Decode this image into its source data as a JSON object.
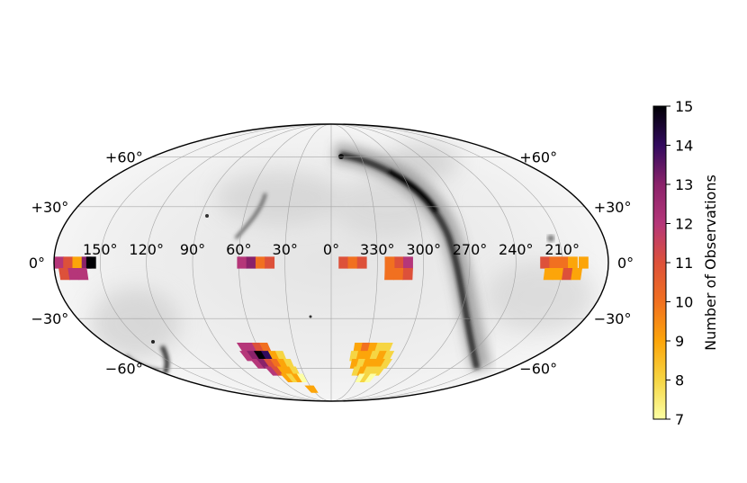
{
  "chart_data": {
    "type": "heatmap",
    "projection": "mollweide",
    "background": "grayscale all-sky dust emission map",
    "lon_ticks": [
      "150°",
      "120°",
      "90°",
      "60°",
      "30°",
      "0°",
      "330°",
      "300°",
      "270°",
      "240°",
      "210°"
    ],
    "lon_tick_values": [
      150,
      120,
      90,
      60,
      30,
      0,
      330,
      300,
      270,
      240,
      210
    ],
    "lat_ticks_left": [
      "+60°",
      "+30°",
      "0°",
      "−30°",
      "−60°"
    ],
    "lat_ticks_right": [
      "+60°",
      "+30°",
      "0°",
      "−30°",
      "−60°"
    ],
    "lat_tick_values": [
      60,
      30,
      0,
      -30,
      -60
    ],
    "grid": true,
    "colormap": "inferno_r",
    "colorbar": {
      "label": "Number of Observations",
      "min": 7,
      "max": 15,
      "ticks": [
        "7",
        "8",
        "9",
        "10",
        "11",
        "12",
        "13",
        "14",
        "15"
      ],
      "tick_values": [
        7,
        8,
        9,
        10,
        11,
        12,
        13,
        14,
        15
      ],
      "placement": "right"
    },
    "fields": [
      {
        "lon": [
          154,
          180
        ],
        "lat": [
          -10,
          5
        ],
        "value": 12
      },
      {
        "lon": [
          -180,
          -158
        ],
        "lat": [
          -10,
          5
        ],
        "value": 11
      },
      {
        "lon": [
          190,
          225
        ],
        "lat": [
          -10,
          5
        ],
        "value": 10
      },
      {
        "lon": [
          -3,
          50
        ],
        "lat": [
          -10,
          5
        ],
        "value": 10
      },
      {
        "lon": [
          50,
          64
        ],
        "lat": [
          -10,
          5
        ],
        "value": 12
      },
      {
        "lon": [
          307,
          357
        ],
        "lat": [
          -10,
          5
        ],
        "value": 10
      },
      {
        "lon": [
          45,
          75
        ],
        "lat": [
          -62,
          -45
        ],
        "value": 12
      },
      {
        "lon": [
          30,
          50
        ],
        "lat": [
          -66,
          -50
        ],
        "value": 9
      },
      {
        "lon": [
          300,
          340
        ],
        "lat": [
          -65,
          -45
        ],
        "value": 9
      },
      {
        "lon": [
          295,
          315
        ],
        "lat": [
          -65,
          -55
        ],
        "value": 8
      },
      {
        "lon": [
          35,
          25
        ],
        "lat": [
          -78,
          -72
        ],
        "value": 9
      }
    ],
    "cells": [
      {
        "lon": 177,
        "lat": 0,
        "value": 12
      },
      {
        "lon": 171,
        "lat": 0,
        "value": 11
      },
      {
        "lon": 165,
        "lat": 0,
        "value": 9
      },
      {
        "lon": 159,
        "lat": 0,
        "value": 13
      },
      {
        "lon": 156,
        "lat": 0,
        "value": 15
      },
      {
        "lon": 174,
        "lat": -6,
        "value": 11
      },
      {
        "lon": 168,
        "lat": -6,
        "value": 12
      },
      {
        "lon": 162,
        "lat": -6,
        "value": 12
      },
      {
        "lon": 58,
        "lat": 0,
        "value": 12
      },
      {
        "lon": 52,
        "lat": 0,
        "value": 13
      },
      {
        "lon": 46,
        "lat": 0,
        "value": 10
      },
      {
        "lon": 40,
        "lat": 0,
        "value": 11
      },
      {
        "lon": 352,
        "lat": 0,
        "value": 11
      },
      {
        "lon": 346,
        "lat": 0,
        "value": 10
      },
      {
        "lon": 340,
        "lat": 0,
        "value": 11
      },
      {
        "lon": 316,
        "lat": 0,
        "value": 11
      },
      {
        "lon": 310,
        "lat": 0,
        "value": 12
      },
      {
        "lon": 322,
        "lat": 0,
        "value": 10
      },
      {
        "lon": 322,
        "lat": -6,
        "value": 10
      },
      {
        "lon": 316,
        "lat": -6,
        "value": 10
      },
      {
        "lon": 310,
        "lat": -6,
        "value": 11
      },
      {
        "lon": 221,
        "lat": 0,
        "value": 11
      },
      {
        "lon": 215,
        "lat": 0,
        "value": 10
      },
      {
        "lon": 209,
        "lat": 0,
        "value": 10
      },
      {
        "lon": 203,
        "lat": 0,
        "value": 9
      },
      {
        "lon": 196,
        "lat": 0,
        "value": 9
      },
      {
        "lon": 218,
        "lat": -6,
        "value": 9
      },
      {
        "lon": 212,
        "lat": -6,
        "value": 9
      },
      {
        "lon": 206,
        "lat": -6,
        "value": 11
      },
      {
        "lon": 200,
        "lat": -6,
        "value": 9
      },
      {
        "lon": 72,
        "lat": -47,
        "value": 12
      },
      {
        "lon": 66,
        "lat": -47,
        "value": 12
      },
      {
        "lon": 60,
        "lat": -47,
        "value": 11
      },
      {
        "lon": 54,
        "lat": -47,
        "value": 10
      },
      {
        "lon": 74,
        "lat": -52,
        "value": 12
      },
      {
        "lon": 68,
        "lat": -52,
        "value": 13
      },
      {
        "lon": 62,
        "lat": -52,
        "value": 15
      },
      {
        "lon": 56,
        "lat": -52,
        "value": 14
      },
      {
        "lon": 50,
        "lat": -52,
        "value": 9
      },
      {
        "lon": 44,
        "lat": -52,
        "value": 8
      },
      {
        "lon": 70,
        "lat": -57,
        "value": 12
      },
      {
        "lon": 64,
        "lat": -57,
        "value": 13
      },
      {
        "lon": 58,
        "lat": -57,
        "value": 11
      },
      {
        "lon": 52,
        "lat": -57,
        "value": 10
      },
      {
        "lon": 46,
        "lat": -57,
        "value": 9
      },
      {
        "lon": 40,
        "lat": -57,
        "value": 8
      },
      {
        "lon": 62,
        "lat": -62,
        "value": 12
      },
      {
        "lon": 56,
        "lat": -62,
        "value": 11
      },
      {
        "lon": 50,
        "lat": -62,
        "value": 9
      },
      {
        "lon": 44,
        "lat": -62,
        "value": 9
      },
      {
        "lon": 38,
        "lat": -62,
        "value": 8
      },
      {
        "lon": 52,
        "lat": -67,
        "value": 9
      },
      {
        "lon": 46,
        "lat": -67,
        "value": 8
      },
      {
        "lon": 40,
        "lat": -67,
        "value": 9
      },
      {
        "lon": 34,
        "lat": -67,
        "value": 7
      },
      {
        "lon": 28,
        "lat": -76,
        "value": 9
      },
      {
        "lon": 34,
        "lat": -76,
        "value": 9
      },
      {
        "lon": 338,
        "lat": -47,
        "value": 9
      },
      {
        "lon": 332,
        "lat": -47,
        "value": 10
      },
      {
        "lon": 326,
        "lat": -47,
        "value": 9
      },
      {
        "lon": 320,
        "lat": -47,
        "value": 8
      },
      {
        "lon": 314,
        "lat": -47,
        "value": 8
      },
      {
        "lon": 340,
        "lat": -52,
        "value": 8
      },
      {
        "lon": 334,
        "lat": -52,
        "value": 9
      },
      {
        "lon": 328,
        "lat": -52,
        "value": 9
      },
      {
        "lon": 322,
        "lat": -52,
        "value": 8
      },
      {
        "lon": 316,
        "lat": -52,
        "value": 9
      },
      {
        "lon": 310,
        "lat": -52,
        "value": 8
      },
      {
        "lon": 338,
        "lat": -57,
        "value": 9
      },
      {
        "lon": 332,
        "lat": -57,
        "value": 8
      },
      {
        "lon": 326,
        "lat": -57,
        "value": 9
      },
      {
        "lon": 320,
        "lat": -57,
        "value": 9
      },
      {
        "lon": 314,
        "lat": -57,
        "value": 9
      },
      {
        "lon": 308,
        "lat": -57,
        "value": 8
      },
      {
        "lon": 334,
        "lat": -62,
        "value": 8
      },
      {
        "lon": 328,
        "lat": -62,
        "value": 9
      },
      {
        "lon": 322,
        "lat": -62,
        "value": 8
      },
      {
        "lon": 316,
        "lat": -62,
        "value": 8
      },
      {
        "lon": 310,
        "lat": -62,
        "value": 8
      },
      {
        "lon": 326,
        "lat": -67,
        "value": 7
      },
      {
        "lon": 320,
        "lat": -67,
        "value": 8
      },
      {
        "lon": 314,
        "lat": -67,
        "value": 7
      }
    ]
  }
}
